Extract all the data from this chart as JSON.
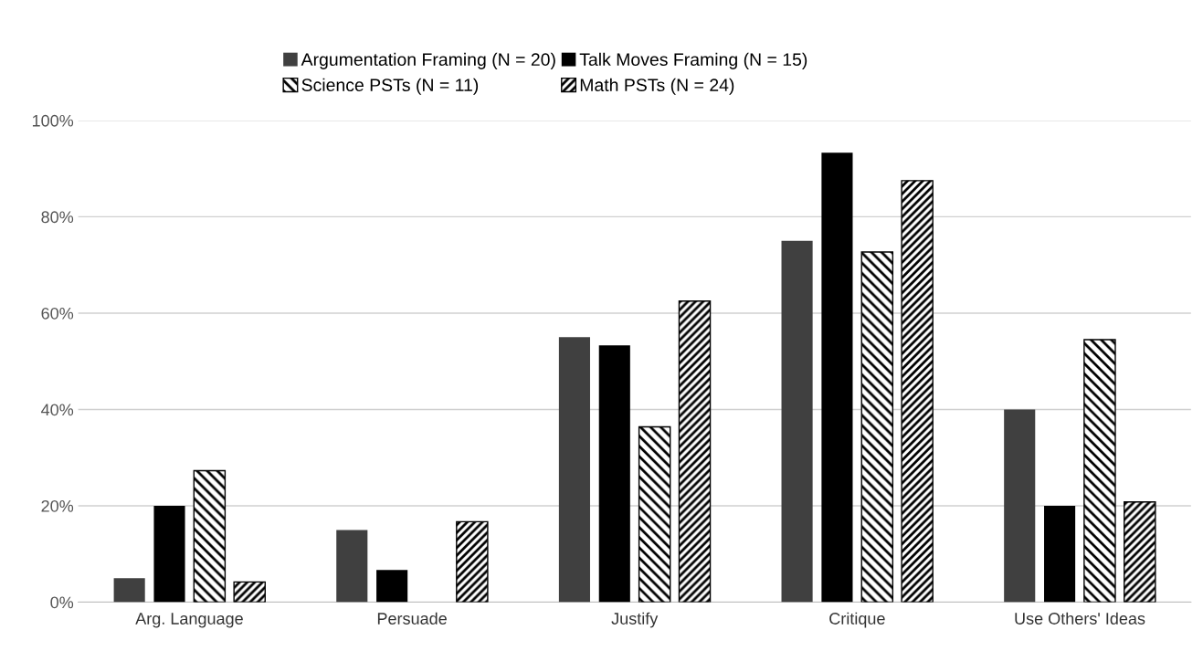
{
  "chart_data": {
    "type": "bar",
    "categories": [
      "Arg. Language",
      "Persuade",
      "Justify",
      "Critique",
      "Use Others' Ideas"
    ],
    "series": [
      {
        "name": "Argumentation Framing (N = 20)",
        "color": "#404040",
        "values": [
          5,
          15,
          55,
          75,
          40
        ]
      },
      {
        "name": "Talk Moves Framing (N = 15)",
        "color": "#000000",
        "values": [
          20,
          6.7,
          53.3,
          93.3,
          20
        ]
      },
      {
        "name": "Science PSTs (N = 11)",
        "color": "#000000",
        "values": [
          27.3,
          0,
          36.4,
          72.7,
          54.5
        ]
      },
      {
        "name": "Math PSTs (N = 24)",
        "color": "#000000",
        "values": [
          4.2,
          16.7,
          62.5,
          87.5,
          20.8
        ]
      }
    ],
    "ylim": [
      0,
      100
    ],
    "yticks": [
      {
        "value": 0,
        "label": "0%"
      },
      {
        "value": 20,
        "label": "20%"
      },
      {
        "value": 40,
        "label": "40%"
      },
      {
        "value": 60,
        "label": "60%"
      },
      {
        "value": 80,
        "label": "80%"
      },
      {
        "value": 100,
        "label": "100%"
      }
    ],
    "grid": "y",
    "legend": "top"
  }
}
